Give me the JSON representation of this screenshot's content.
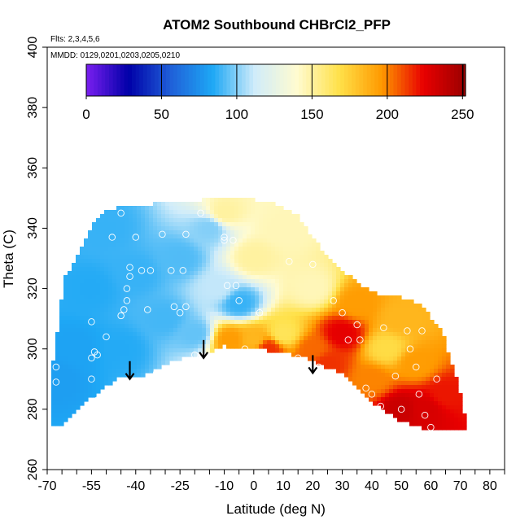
{
  "chart_data": {
    "type": "heatmap",
    "title": "ATOM2 Southbound CHBrCl2_PFP",
    "subtitle_flights": "Flts: 2,3,4,5,6",
    "subtitle_dates": "MMDD: 0129,0201,0203,0205,0210",
    "xlabel": "Latitude (deg N)",
    "ylabel": "Theta (C)",
    "xlim": [
      -70,
      85
    ],
    "ylim": [
      260,
      400
    ],
    "x_tick_labels": [
      "-70",
      "-55",
      "-40",
      "-25",
      "-10",
      "0",
      "10",
      "20",
      "30",
      "40",
      "50",
      "60",
      "70",
      "80"
    ],
    "y_tick_labels": [
      "260",
      "280",
      "300",
      "320",
      "340",
      "360",
      "380",
      "400"
    ],
    "colorbar": {
      "range": [
        0,
        252
      ],
      "tick_labels": [
        "0",
        "50",
        "100",
        "150",
        "200",
        "250"
      ],
      "colors": [
        "#7a1ff0",
        "#0000a8",
        "#1f5fd8",
        "#1ea8f5",
        "#d0ecfa",
        "#fffbd0",
        "#ffe14a",
        "#ff9a00",
        "#e80000",
        "#9a0000"
      ]
    },
    "field": [
      {
        "lat": -67,
        "theta": 290,
        "value": 80
      },
      {
        "lat": -60,
        "theta": 300,
        "value": 82
      },
      {
        "lat": -55,
        "theta": 320,
        "value": 85
      },
      {
        "lat": -50,
        "theta": 340,
        "value": 88
      },
      {
        "lat": -45,
        "theta": 300,
        "value": 85
      },
      {
        "lat": -40,
        "theta": 325,
        "value": 88
      },
      {
        "lat": -30,
        "theta": 310,
        "value": 90
      },
      {
        "lat": -25,
        "theta": 330,
        "value": 92
      },
      {
        "lat": -20,
        "theta": 305,
        "value": 95
      },
      {
        "lat": -15,
        "theta": 340,
        "value": 100
      },
      {
        "lat": -12,
        "theta": 320,
        "value": 110
      },
      {
        "lat": -10,
        "theta": 345,
        "value": 150
      },
      {
        "lat": -8,
        "theta": 303,
        "value": 195
      },
      {
        "lat": -5,
        "theta": 315,
        "value": 88
      },
      {
        "lat": 0,
        "theta": 330,
        "value": 150
      },
      {
        "lat": 0,
        "theta": 303,
        "value": 185
      },
      {
        "lat": 5,
        "theta": 300,
        "value": 215
      },
      {
        "lat": 10,
        "theta": 340,
        "value": 145
      },
      {
        "lat": 10,
        "theta": 305,
        "value": 165
      },
      {
        "lat": 20,
        "theta": 320,
        "value": 145
      },
      {
        "lat": 20,
        "theta": 300,
        "value": 205
      },
      {
        "lat": 25,
        "theta": 295,
        "value": 215
      },
      {
        "lat": 30,
        "theta": 305,
        "value": 225
      },
      {
        "lat": 35,
        "theta": 315,
        "value": 195
      },
      {
        "lat": 40,
        "theta": 290,
        "value": 200
      },
      {
        "lat": 45,
        "theta": 300,
        "value": 170
      },
      {
        "lat": 50,
        "theta": 310,
        "value": 185
      },
      {
        "lat": 50,
        "theta": 280,
        "value": 235
      },
      {
        "lat": 55,
        "theta": 295,
        "value": 195
      },
      {
        "lat": 58,
        "theta": 280,
        "value": 230
      },
      {
        "lat": 65,
        "theta": 285,
        "value": 220
      }
    ],
    "samples": [
      {
        "lat": -67,
        "theta": 289
      },
      {
        "lat": -67,
        "theta": 294
      },
      {
        "lat": -55,
        "theta": 297
      },
      {
        "lat": -54,
        "theta": 299
      },
      {
        "lat": -53,
        "theta": 298
      },
      {
        "lat": -55,
        "theta": 290
      },
      {
        "lat": -53,
        "theta": 283
      },
      {
        "lat": -55,
        "theta": 309
      },
      {
        "lat": -50,
        "theta": 304
      },
      {
        "lat": -48,
        "theta": 337
      },
      {
        "lat": -45,
        "theta": 345
      },
      {
        "lat": -45,
        "theta": 311
      },
      {
        "lat": -44,
        "theta": 313
      },
      {
        "lat": -43,
        "theta": 316
      },
      {
        "lat": -43,
        "theta": 320
      },
      {
        "lat": -42,
        "theta": 324
      },
      {
        "lat": -42,
        "theta": 327
      },
      {
        "lat": -40,
        "theta": 337
      },
      {
        "lat": -38,
        "theta": 326
      },
      {
        "lat": -36,
        "theta": 313
      },
      {
        "lat": -35,
        "theta": 326
      },
      {
        "lat": -33,
        "theta": 292
      },
      {
        "lat": -31,
        "theta": 338
      },
      {
        "lat": -28,
        "theta": 326
      },
      {
        "lat": -27,
        "theta": 314
      },
      {
        "lat": -25,
        "theta": 312
      },
      {
        "lat": -24,
        "theta": 326
      },
      {
        "lat": -23,
        "theta": 338
      },
      {
        "lat": -23,
        "theta": 314
      },
      {
        "lat": -20,
        "theta": 298
      },
      {
        "lat": -18,
        "theta": 345
      },
      {
        "lat": -12,
        "theta": 295
      },
      {
        "lat": -10,
        "theta": 337
      },
      {
        "lat": -10,
        "theta": 336
      },
      {
        "lat": -9,
        "theta": 321
      },
      {
        "lat": -7,
        "theta": 336
      },
      {
        "lat": -6,
        "theta": 321
      },
      {
        "lat": -5,
        "theta": 316
      },
      {
        "lat": -3,
        "theta": 300
      },
      {
        "lat": 2,
        "theta": 312
      },
      {
        "lat": 12,
        "theta": 329
      },
      {
        "lat": 15,
        "theta": 297
      },
      {
        "lat": 20,
        "theta": 328
      },
      {
        "lat": 22,
        "theta": 293
      },
      {
        "lat": 22,
        "theta": 294
      },
      {
        "lat": 27,
        "theta": 316
      },
      {
        "lat": 30,
        "theta": 312
      },
      {
        "lat": 32,
        "theta": 303
      },
      {
        "lat": 35,
        "theta": 308
      },
      {
        "lat": 36,
        "theta": 303
      },
      {
        "lat": 38,
        "theta": 287
      },
      {
        "lat": 40,
        "theta": 285
      },
      {
        "lat": 43,
        "theta": 281
      },
      {
        "lat": 44,
        "theta": 307
      },
      {
        "lat": 48,
        "theta": 291
      },
      {
        "lat": 50,
        "theta": 280
      },
      {
        "lat": 52,
        "theta": 306
      },
      {
        "lat": 53,
        "theta": 300
      },
      {
        "lat": 55,
        "theta": 294
      },
      {
        "lat": 56,
        "theta": 285
      },
      {
        "lat": 57,
        "theta": 306
      },
      {
        "lat": 58,
        "theta": 278
      },
      {
        "lat": 60,
        "theta": 274
      },
      {
        "lat": 62,
        "theta": 290
      },
      {
        "lat": 63,
        "theta": 310
      },
      {
        "lat": 65,
        "theta": 315
      }
    ],
    "arrows": [
      {
        "lat": -42,
        "theta": 290
      },
      {
        "lat": -17,
        "theta": 297
      },
      {
        "lat": 20,
        "theta": 292
      }
    ],
    "coverage_top": [
      [
        -64,
        324
      ],
      [
        -60,
        330
      ],
      [
        -55,
        340
      ],
      [
        -52,
        345
      ],
      [
        -45,
        347
      ],
      [
        -36,
        348
      ],
      [
        -20,
        349
      ],
      [
        -15,
        350
      ],
      [
        -5,
        350
      ],
      [
        5,
        349
      ],
      [
        15,
        344
      ],
      [
        25,
        330
      ],
      [
        35,
        322
      ],
      [
        42,
        318
      ],
      [
        50,
        317
      ],
      [
        57,
        315
      ],
      [
        64,
        305
      ],
      [
        69,
        290
      ],
      [
        72,
        275
      ],
      [
        73,
        273
      ]
    ],
    "coverage_bottom": [
      [
        73,
        273
      ],
      [
        60,
        273
      ],
      [
        50,
        276
      ],
      [
        42,
        281
      ],
      [
        36,
        286
      ],
      [
        30,
        292
      ],
      [
        24,
        294
      ],
      [
        18,
        297
      ],
      [
        10,
        299
      ],
      [
        0,
        300
      ],
      [
        -10,
        301
      ],
      [
        -15,
        299
      ],
      [
        -24,
        297
      ],
      [
        -30,
        295
      ],
      [
        -38,
        291
      ],
      [
        -45,
        291
      ],
      [
        -55,
        284
      ],
      [
        -62,
        277
      ],
      [
        -67,
        274
      ],
      [
        -69,
        275
      ],
      [
        -69,
        292
      ],
      [
        -67,
        300
      ],
      [
        -66,
        312
      ],
      [
        -64,
        324
      ]
    ]
  }
}
